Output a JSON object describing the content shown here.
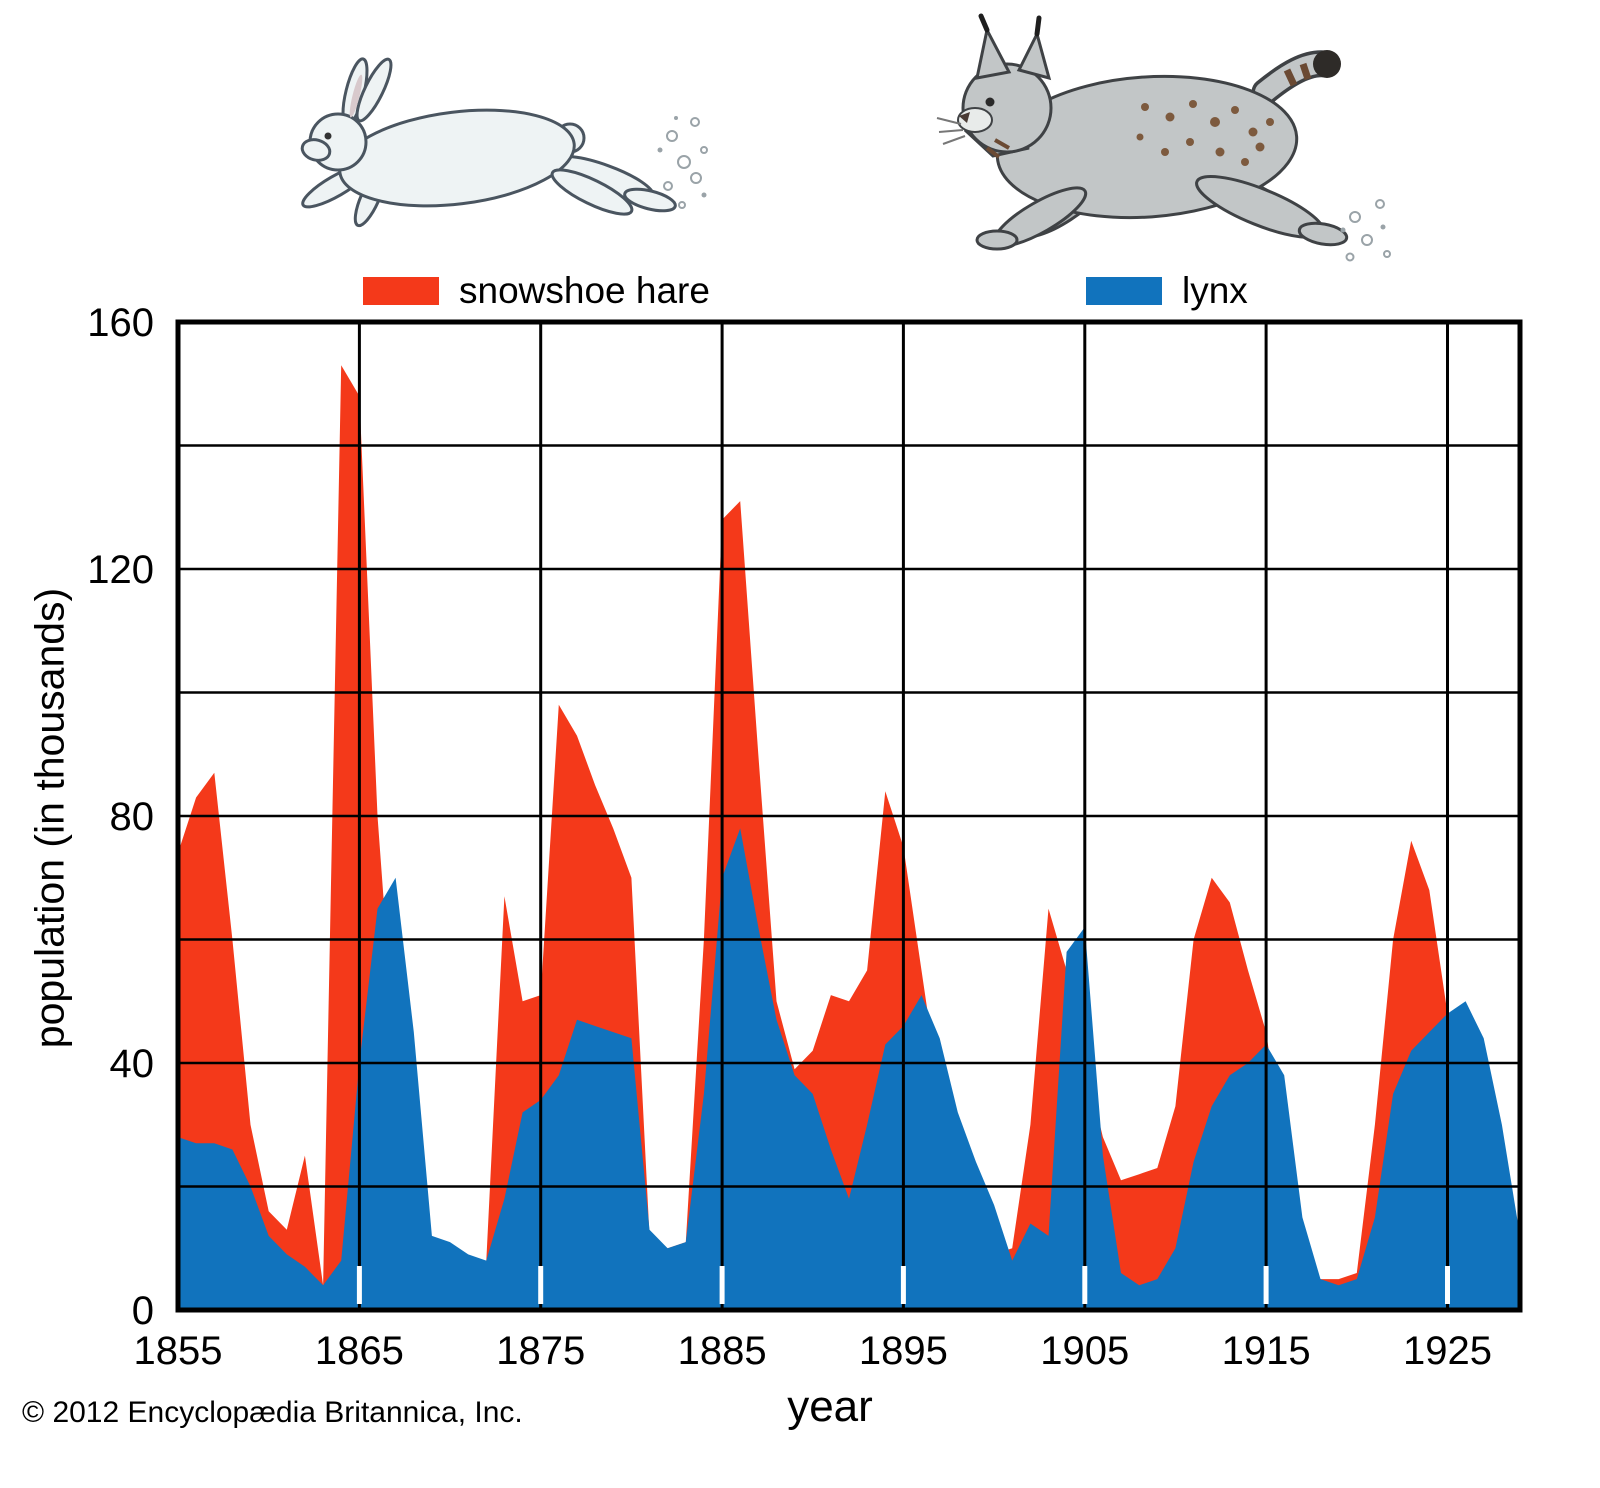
{
  "page": {
    "copyright": "© 2012 Encyclopædia Britannica, Inc."
  },
  "illustrations": [
    {
      "name": "hare-illustration",
      "depicts": "running snowshoe hare"
    },
    {
      "name": "lynx-illustration",
      "depicts": "running lynx"
    }
  ],
  "chart_data": {
    "type": "area",
    "title": "",
    "xlabel": "year",
    "ylabel": "population (in thousands)",
    "xlim": [
      1855,
      1929
    ],
    "ylim": [
      0,
      160
    ],
    "ygrid_step": 20,
    "xgrid_step": 10,
    "grid": true,
    "legend_position": "top",
    "xticks": [
      "1855",
      "1865",
      "1875",
      "1885",
      "1895",
      "1905",
      "1915",
      "1925"
    ],
    "yticks": [
      "0",
      "40",
      "80",
      "120",
      "160"
    ],
    "x": [
      1855,
      1856,
      1857,
      1858,
      1859,
      1860,
      1861,
      1862,
      1863,
      1864,
      1865,
      1866,
      1867,
      1868,
      1869,
      1870,
      1871,
      1872,
      1873,
      1874,
      1875,
      1876,
      1877,
      1878,
      1879,
      1880,
      1881,
      1882,
      1883,
      1884,
      1885,
      1886,
      1887,
      1888,
      1889,
      1890,
      1891,
      1892,
      1893,
      1894,
      1895,
      1896,
      1897,
      1898,
      1899,
      1900,
      1901,
      1902,
      1903,
      1904,
      1905,
      1906,
      1907,
      1908,
      1909,
      1910,
      1911,
      1912,
      1913,
      1914,
      1915,
      1916,
      1917,
      1918,
      1919,
      1920,
      1921,
      1922,
      1923,
      1924,
      1925,
      1926,
      1927,
      1928,
      1929
    ],
    "series": [
      {
        "name": "snowshoe hare",
        "color": "#f4391a",
        "values": [
          74,
          83,
          87,
          60,
          30,
          16,
          13,
          25,
          4,
          153,
          148,
          80,
          40,
          15,
          10,
          9,
          6,
          8,
          67,
          50,
          51,
          98,
          93,
          85,
          78,
          70,
          12,
          10,
          11,
          60,
          128,
          131,
          90,
          50,
          39,
          42,
          51,
          50,
          55,
          84,
          75,
          55,
          35,
          22,
          14,
          9,
          10,
          30,
          65,
          55,
          40,
          28,
          21,
          22,
          23,
          33,
          60,
          70,
          66,
          55,
          45,
          25,
          8,
          5,
          5,
          6,
          30,
          60,
          76,
          68,
          48,
          35,
          20,
          12,
          10
        ]
      },
      {
        "name": "lynx",
        "color": "#1173bd",
        "values": [
          28,
          27,
          27,
          26,
          20,
          12,
          9,
          7,
          4,
          8,
          40,
          65,
          70,
          45,
          12,
          11,
          9,
          8,
          18,
          32,
          34,
          38,
          47,
          46,
          45,
          44,
          13,
          10,
          11,
          35,
          70,
          78,
          62,
          47,
          38,
          35,
          26,
          18,
          30,
          43,
          46,
          51,
          44,
          32,
          24,
          17,
          8,
          14,
          12,
          58,
          62,
          25,
          6,
          4,
          5,
          10,
          24,
          33,
          38,
          40,
          43,
          38,
          15,
          5,
          4,
          5,
          15,
          35,
          42,
          45,
          48,
          50,
          44,
          30,
          12
        ]
      }
    ]
  }
}
